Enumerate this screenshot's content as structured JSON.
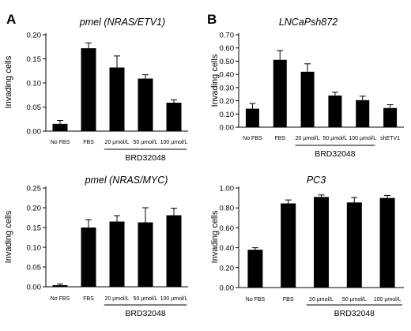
{
  "chart_data": [
    {
      "panel": "A",
      "type": "bar",
      "title": "pmel (NRAS/ETV1)",
      "ylabel": "Invading cells",
      "ylim": [
        0,
        0.2
      ],
      "yticks": [
        "0.00",
        "0.05",
        "0.10",
        "0.15",
        "0.20"
      ],
      "categories": [
        "No FBS",
        "FBS",
        "20 µmol/L",
        "50 µmol/L",
        "100 µmol/L"
      ],
      "values": [
        0.015,
        0.172,
        0.132,
        0.109,
        0.059
      ],
      "errors": [
        0.007,
        0.011,
        0.024,
        0.008,
        0.006
      ],
      "group_label": "BRD32048",
      "group_start": 2,
      "group_end": 4
    },
    {
      "panel": "B",
      "type": "bar",
      "title": "LNCaPsh872",
      "ylabel": "Invading cells",
      "ylim": [
        0,
        0.7
      ],
      "yticks": [
        "0.00",
        "0.10",
        "0.20",
        "0.30",
        "0.40",
        "0.50",
        "0.60",
        "0.70"
      ],
      "categories": [
        "No FBS",
        "FBS",
        "20 µmol/L",
        "50 µmol/L",
        "100 µmol/L",
        "shETV1"
      ],
      "values": [
        0.14,
        0.51,
        0.42,
        0.24,
        0.205,
        0.145
      ],
      "errors": [
        0.04,
        0.07,
        0.06,
        0.025,
        0.03,
        0.025
      ],
      "group_label": "BRD32048",
      "group_start": 2,
      "group_end": 4
    },
    {
      "panel": "",
      "type": "bar",
      "title": "pmel (NRAS/MYC)",
      "ylabel": "Invading cells",
      "ylim": [
        0,
        0.25
      ],
      "yticks": [
        "0.00",
        "0.05",
        "0.10",
        "0.15",
        "0.20",
        "0.25"
      ],
      "categories": [
        "No FBS",
        "FBS",
        "20 µmol/L",
        "50 µmol/L",
        "100 µmol/L"
      ],
      "values": [
        0.004,
        0.15,
        0.165,
        0.163,
        0.181
      ],
      "errors": [
        0.003,
        0.02,
        0.015,
        0.037,
        0.018
      ],
      "group_label": "BRD32048",
      "group_start": 2,
      "group_end": 4
    },
    {
      "panel": "",
      "type": "bar",
      "title": "PC3",
      "ylabel": "Invading cells",
      "ylim": [
        0,
        1.0
      ],
      "yticks": [
        "0.00",
        "0.20",
        "0.40",
        "0.60",
        "0.80",
        "1.00"
      ],
      "categories": [
        "No FBS",
        "FBS",
        "20 µmol/L",
        "50 µmol/L",
        "100 µmol/L"
      ],
      "values": [
        0.38,
        0.845,
        0.91,
        0.855,
        0.9
      ],
      "errors": [
        0.02,
        0.035,
        0.02,
        0.05,
        0.025
      ],
      "group_label": "BRD32048",
      "group_start": 2,
      "group_end": 4
    }
  ]
}
